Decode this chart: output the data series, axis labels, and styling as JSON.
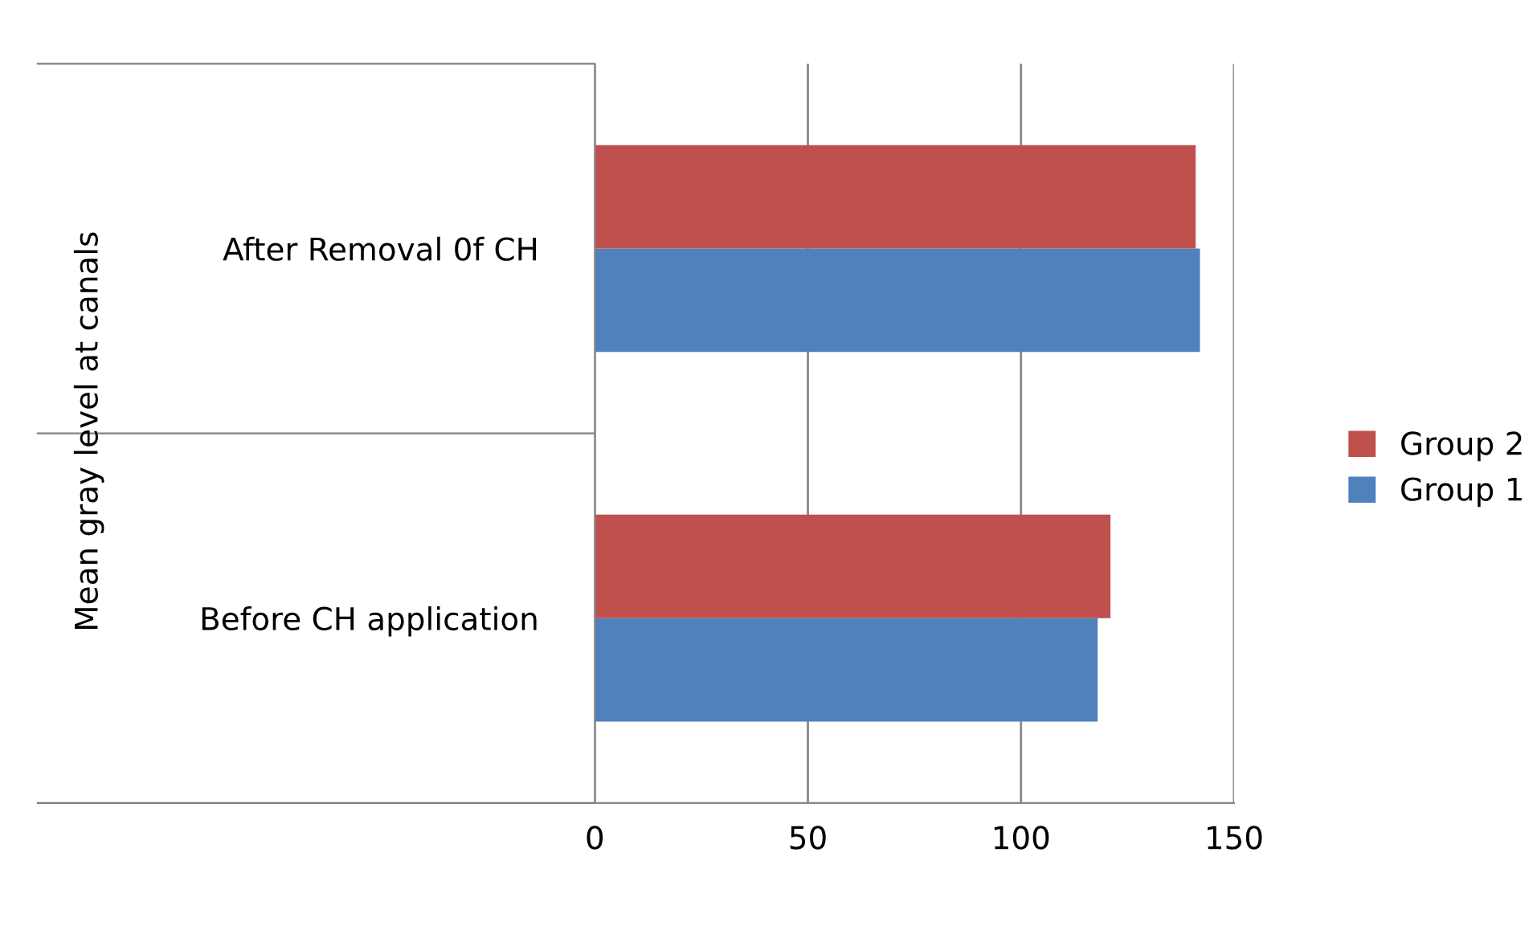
{
  "chart_data": {
    "type": "bar",
    "orientation": "horizontal",
    "ylabel": "Mean gray level at canals",
    "categories": [
      "After Removal 0f CH",
      "Before CH application"
    ],
    "series": [
      {
        "name": "Group 1",
        "color": "#4f81bd",
        "values": [
          142,
          118
        ]
      },
      {
        "name": "Group 2",
        "color": "#c0504d",
        "values": [
          141,
          121
        ]
      }
    ],
    "xlim": [
      0,
      150
    ],
    "xticks": [
      0,
      50,
      100,
      150
    ],
    "grid": "x",
    "legend": "right"
  }
}
